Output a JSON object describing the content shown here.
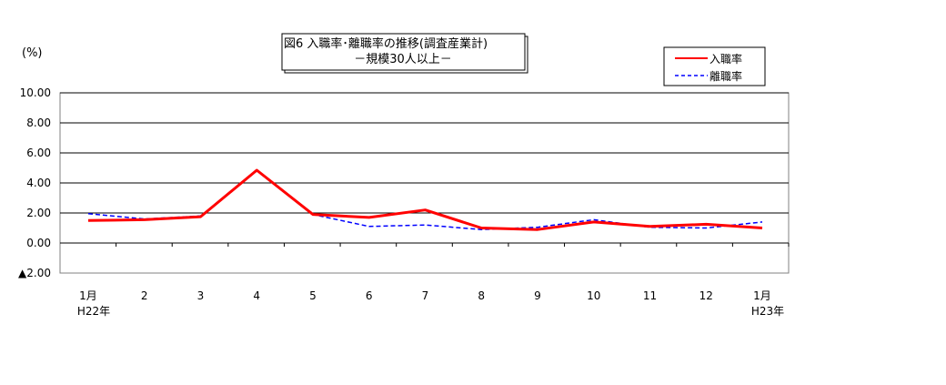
{
  "chart_data": {
    "type": "line",
    "title": "図6  入職率･離職率の推移(調査産業計)",
    "subtitle": "－規模30人以上－",
    "ylabel": "(%)",
    "xlabel": "",
    "ylim": [
      -2,
      10
    ],
    "y_ticks": [
      {
        "value": 10,
        "label": "10.00"
      },
      {
        "value": 8,
        "label": "8.00"
      },
      {
        "value": 6,
        "label": "6.00"
      },
      {
        "value": 4,
        "label": "4.00"
      },
      {
        "value": 2,
        "label": "2.00"
      },
      {
        "value": 0,
        "label": "0.00"
      },
      {
        "value": -2,
        "label": "▲2.00"
      }
    ],
    "categories": [
      "1月",
      "2",
      "3",
      "4",
      "5",
      "6",
      "7",
      "8",
      "9",
      "10",
      "11",
      "12",
      "1月"
    ],
    "category_sublabels": [
      "H22年",
      "",
      "",
      "",
      "",
      "",
      "",
      "",
      "",
      "",
      "",
      "",
      "H23年"
    ],
    "grid": true,
    "legend_position": "top-right",
    "series": [
      {
        "name": "入職率",
        "color": "#ff0000",
        "style": "solid",
        "values": [
          1.5,
          1.55,
          1.75,
          4.85,
          1.9,
          1.7,
          2.2,
          1.0,
          0.9,
          1.4,
          1.1,
          1.25,
          1.0
        ]
      },
      {
        "name": "離職率",
        "color": "#0000ff",
        "style": "dashed",
        "values": [
          1.95,
          1.6,
          1.8,
          4.8,
          1.9,
          1.1,
          1.2,
          0.9,
          1.05,
          1.55,
          1.05,
          1.0,
          1.4
        ]
      }
    ]
  }
}
